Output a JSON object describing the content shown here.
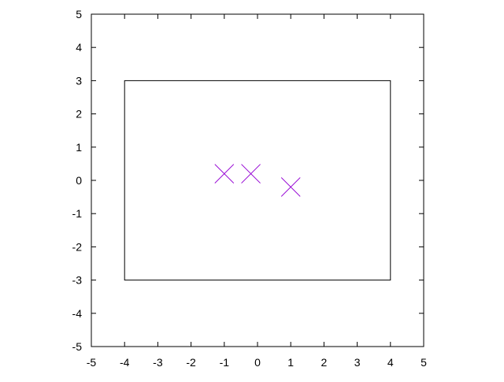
{
  "chart_data": {
    "type": "scatter",
    "title": "",
    "xlabel": "",
    "ylabel": "",
    "xlim": [
      -5,
      5
    ],
    "ylim": [
      -5,
      5
    ],
    "x_ticks": [
      -5,
      -4,
      -3,
      -2,
      -1,
      0,
      1,
      2,
      3,
      4,
      5
    ],
    "y_ticks": [
      -5,
      -4,
      -3,
      -2,
      -1,
      0,
      1,
      2,
      3,
      4,
      5
    ],
    "x_tick_labels": [
      "-5",
      "-4",
      "-3",
      "-2",
      "-1",
      "0",
      "1",
      "2",
      "3",
      "4",
      "5"
    ],
    "y_tick_labels": [
      "-5",
      "-4",
      "-3",
      "-2",
      "-1",
      "0",
      "1",
      "2",
      "3",
      "4",
      "5"
    ],
    "grid": false,
    "legend": "none",
    "rectangle": {
      "x0": -4,
      "y0": -3,
      "x1": 4,
      "y1": 3
    },
    "series": [
      {
        "marker": "x",
        "color": "#9400D3",
        "points": [
          {
            "x": -1.0,
            "y": 0.2
          },
          {
            "x": -0.2,
            "y": 0.2
          },
          {
            "x": 1.0,
            "y": -0.2
          }
        ]
      }
    ],
    "colors": {
      "axis": "#000000",
      "marker": "#9400D3",
      "background": "#ffffff"
    }
  }
}
